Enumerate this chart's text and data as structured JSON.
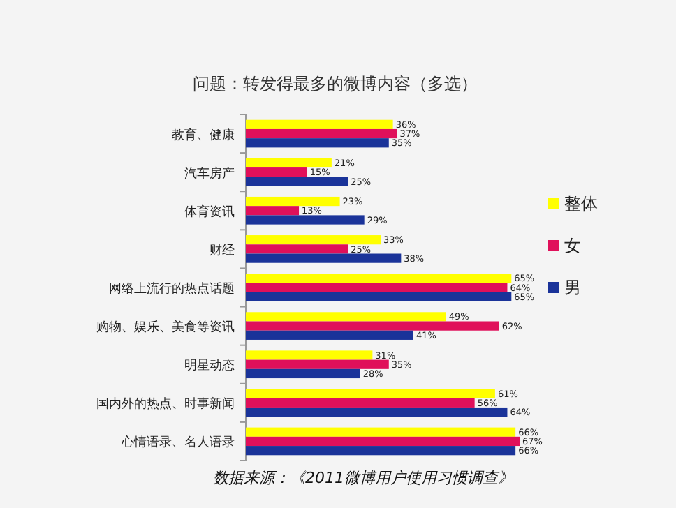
{
  "chart_data": {
    "type": "bar",
    "orientation": "horizontal",
    "title": "问题：转发得最多的微博内容（多选）",
    "categories": [
      "教育、健康",
      "汽车房产",
      "体育资讯",
      "财经",
      "网络上流行的热点话题",
      "购物、娱乐、美食等资讯",
      "明星动态",
      "国内外的热点、时事新闻",
      "心情语录、名人语录"
    ],
    "series": [
      {
        "name": "整体",
        "color": "#ffff00",
        "values": [
          36,
          21,
          23,
          33,
          65,
          49,
          31,
          61,
          66
        ],
        "value_labels": [
          "36%",
          "21%",
          "23%",
          "33%",
          "65%",
          "49%",
          "31%",
          "61%",
          "66%"
        ]
      },
      {
        "name": "女",
        "color": "#e0105a",
        "values": [
          37,
          15,
          13,
          25,
          64,
          62,
          35,
          56,
          67
        ],
        "value_labels": [
          "37%",
          "15%",
          "13%",
          "25%",
          "64%",
          "62%",
          "35%",
          "56%",
          "67%"
        ]
      },
      {
        "name": "男",
        "color": "#1a3399",
        "values": [
          35,
          25,
          29,
          38,
          65,
          41,
          28,
          64,
          66
        ],
        "value_labels": [
          "35%",
          "25%",
          "29%",
          "38%",
          "65%",
          "41%",
          "28%",
          "64%",
          "66%"
        ]
      }
    ],
    "legend": "right",
    "annotations": [
      "数据来源：《2011微博用户使用习惯调查》"
    ]
  }
}
